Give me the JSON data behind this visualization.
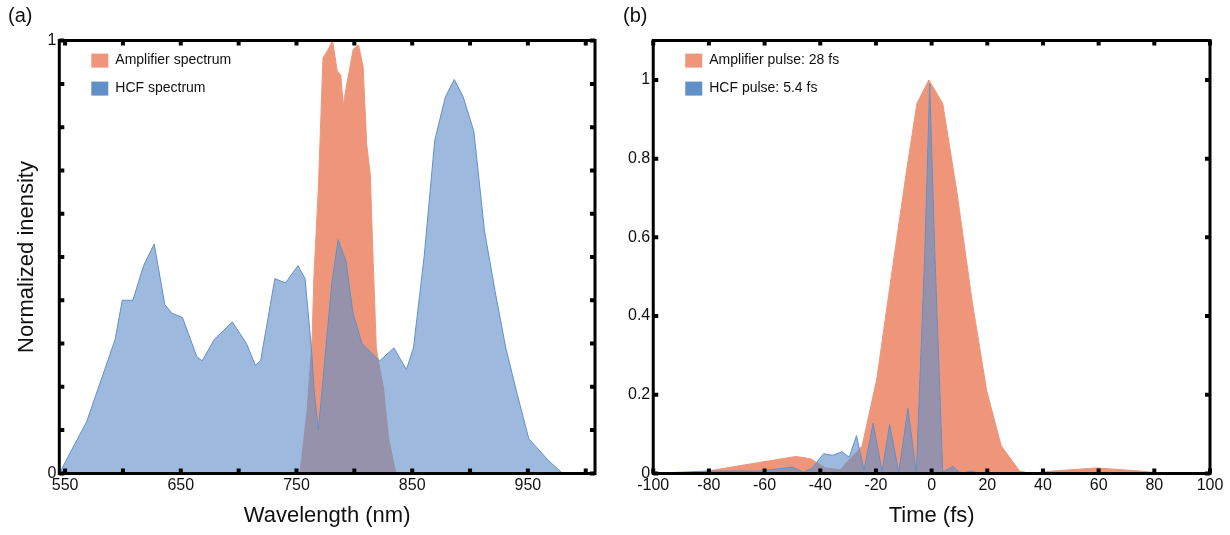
{
  "chart_data": [
    {
      "type": "area",
      "annotations": [
        "(a)"
      ],
      "xlabel": "Wavelength (nm)",
      "ylabel": "Normalized inensity",
      "legend": "top left",
      "grid": false,
      "xlim": [
        545,
        1008
      ],
      "xticks": [
        550,
        {
          "value": 600,
          "label": null
        },
        650,
        {
          "value": 700,
          "label": null
        },
        750,
        {
          "value": 800,
          "label": null
        },
        850,
        {
          "value": 900,
          "label": null
        },
        950,
        {
          "value": 1000,
          "label": null
        }
      ],
      "ylim": [
        0,
        1
      ],
      "yticks": [
        0,
        {
          "value": 0.1,
          "label": null
        },
        {
          "value": 0.2,
          "label": null
        },
        {
          "value": 0.3,
          "label": null
        },
        {
          "value": 0.4,
          "label": null
        },
        {
          "value": 0.5,
          "label": null
        },
        {
          "value": 0.6,
          "label": null
        },
        {
          "value": 0.7,
          "label": null
        },
        {
          "value": 0.8,
          "label": null
        },
        {
          "value": 0.9,
          "label": null
        },
        1
      ],
      "series": [
        {
          "name": "Amplifier spectrum",
          "color": "#ef967a",
          "x": [
            752.9,
            759,
            763.5,
            765,
            768.9,
            772.9,
            777.5,
            781.2,
            785.2,
            788.3,
            790.4,
            793.5,
            799,
            803.6,
            807.6,
            810.7,
            813.8,
            815.9,
            819,
            822.1,
            825.1,
            829.7,
            835.9
          ],
          "values": [
            0,
            0.14,
            0.31,
            0.45,
            0.66,
            0.96,
            0.98,
            1,
            0.93,
            0.92,
            0.85,
            0.9,
            0.98,
            0.99,
            0.94,
            0.76,
            0.69,
            0.52,
            0.29,
            0.24,
            0.2,
            0.08,
            0
          ]
        },
        {
          "name": "HCF spectrum",
          "color": "#6190c9",
          "x": [
            545,
            568.7,
            593.3,
            599.4,
            608.6,
            617.8,
            627,
            636.2,
            642.3,
            651.5,
            663.8,
            668.4,
            679.1,
            694.5,
            706.8,
            714.4,
            719,
            731.3,
            740.5,
            751.3,
            757.4,
            763.5,
            765.3,
            768.9,
            780.5,
            786,
            792.8,
            798.9,
            806.6,
            814.2,
            821.9,
            834.2,
            845,
            851.1,
            860.3,
            869.5,
            878.7,
            886.4,
            894.1,
            903.3,
            912.5,
            921.7,
            930.9,
            940.1,
            950.8,
            967.7,
            980
          ],
          "values": [
            0,
            0.12,
            0.31,
            0.4,
            0.4,
            0.48,
            0.53,
            0.39,
            0.37,
            0.36,
            0.27,
            0.26,
            0.31,
            0.35,
            0.3,
            0.25,
            0.26,
            0.45,
            0.44,
            0.48,
            0.45,
            0.27,
            0.19,
            0.1,
            0.44,
            0.54,
            0.49,
            0.37,
            0.3,
            0.28,
            0.26,
            0.29,
            0.24,
            0.29,
            0.5,
            0.77,
            0.87,
            0.91,
            0.87,
            0.79,
            0.56,
            0.42,
            0.29,
            0.19,
            0.08,
            0.03,
            0
          ]
        }
      ]
    },
    {
      "type": "area",
      "annotations": [
        "(b)"
      ],
      "xlabel": "Time (fs)",
      "legend": "top left",
      "grid": false,
      "xlim": [
        -100,
        100
      ],
      "xticks": [
        -100,
        -80,
        -60,
        -40,
        -20,
        0,
        20,
        40,
        60,
        80,
        100
      ],
      "ylim": [
        0,
        1.1
      ],
      "yticks": [
        0,
        0.2,
        0.4,
        0.6,
        0.8,
        1
      ],
      "series": [
        {
          "name": "Amplifier pulse: 28 fs",
          "color": "#ef967a",
          "x": [
            -100,
            -85.5,
            -61.8,
            -48.7,
            -43.4,
            -38.2,
            -32.9,
            -25,
            -19.7,
            -14.5,
            -9.2,
            -5.3,
            -1,
            4,
            9.2,
            14.5,
            19.8,
            25,
            31.6,
            35.5,
            43.4,
            59.2,
            75,
            82.9,
            100
          ],
          "values": [
            0,
            0,
            0.028,
            0.043,
            0.037,
            0.014,
            0.009,
            0.069,
            0.24,
            0.5,
            0.76,
            0.94,
            1,
            0.94,
            0.71,
            0.44,
            0.21,
            0.07,
            0.006,
            0,
            0.006,
            0.014,
            0.006,
            0,
            0
          ]
        },
        {
          "name": "HCF pulse: 5.4 fs",
          "color": "#6190c9",
          "x": [
            -100,
            -80.3,
            -61.8,
            -50,
            -46,
            -42.8,
            -38.8,
            -35.5,
            -32.2,
            -29.6,
            -27,
            -24.3,
            -21,
            -17.8,
            -15.1,
            -11.8,
            -8.5,
            -5.5,
            -2.4,
            -0.7,
            1.1,
            4,
            7.6,
            10.5,
            14.2,
            17.1,
            56.6,
            100
          ],
          "values": [
            0,
            0.006,
            0.006,
            0.016,
            0.003,
            0.014,
            0.05,
            0.046,
            0.055,
            0.041,
            0.096,
            0.009,
            0.128,
            0.005,
            0.124,
            0.003,
            0.165,
            0,
            0.57,
            0.99,
            0.57,
            0.003,
            0.018,
            0,
            0.006,
            0,
            0,
            0
          ]
        }
      ]
    }
  ]
}
